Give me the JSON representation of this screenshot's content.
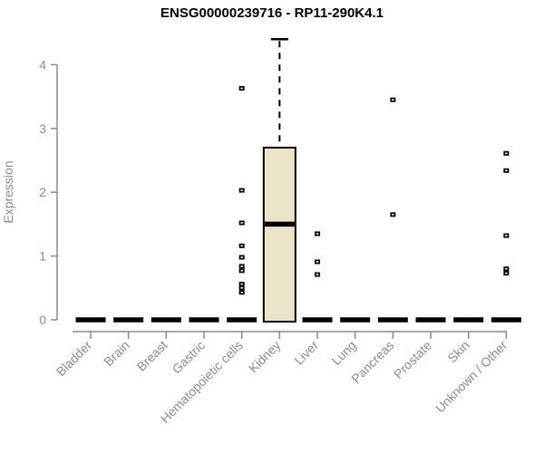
{
  "chart": {
    "title": "ENSG00000239716 - RP11-290K4.1",
    "ylabel": "Expression"
  },
  "chart_data": {
    "type": "box",
    "title": "ENSG00000239716 - RP11-290K4.1",
    "xlabel": "",
    "ylabel": "Expression",
    "ylim": [
      0,
      4.4
    ],
    "yticks": [
      0,
      1,
      2,
      3,
      4
    ],
    "grid": false,
    "legend": "none",
    "categories": [
      "Bladder",
      "Brain",
      "Breast",
      "Gastric",
      "Hematopoietic cells",
      "Kidney",
      "Liver",
      "Lung",
      "Pancreas",
      "Prostate",
      "Skin",
      "Unknown / Other"
    ],
    "boxes": [
      {
        "category": "Bladder",
        "whisker_low": 0,
        "q1": 0,
        "median": 0,
        "q3": 0,
        "whisker_high": 0,
        "outliers": []
      },
      {
        "category": "Brain",
        "whisker_low": 0,
        "q1": 0,
        "median": 0,
        "q3": 0,
        "whisker_high": 0,
        "outliers": []
      },
      {
        "category": "Breast",
        "whisker_low": 0,
        "q1": 0,
        "median": 0,
        "q3": 0,
        "whisker_high": 0,
        "outliers": []
      },
      {
        "category": "Gastric",
        "whisker_low": 0,
        "q1": 0,
        "median": 0,
        "q3": 0,
        "whisker_high": 0,
        "outliers": []
      },
      {
        "category": "Hematopoietic cells",
        "whisker_low": 0,
        "q1": 0,
        "median": 0,
        "q3": 0,
        "whisker_high": 0,
        "outliers": [
          3.63,
          2.03,
          1.52,
          1.16,
          0.98,
          0.84,
          0.77,
          0.56,
          0.5,
          0.43
        ]
      },
      {
        "category": "Kidney",
        "whisker_low": 0,
        "q1": 0,
        "median": 1.5,
        "q3": 2.7,
        "whisker_high": 4.4,
        "outliers": []
      },
      {
        "category": "Liver",
        "whisker_low": 0,
        "q1": 0,
        "median": 0,
        "q3": 0,
        "whisker_high": 0,
        "outliers": [
          1.35,
          0.91,
          0.71
        ]
      },
      {
        "category": "Lung",
        "whisker_low": 0,
        "q1": 0,
        "median": 0,
        "q3": 0,
        "whisker_high": 0,
        "outliers": []
      },
      {
        "category": "Pancreas",
        "whisker_low": 0,
        "q1": 0,
        "median": 0,
        "q3": 0,
        "whisker_high": 0,
        "outliers": [
          3.45,
          1.65
        ]
      },
      {
        "category": "Prostate",
        "whisker_low": 0,
        "q1": 0,
        "median": 0,
        "q3": 0,
        "whisker_high": 0,
        "outliers": []
      },
      {
        "category": "Skin",
        "whisker_low": 0,
        "q1": 0,
        "median": 0,
        "q3": 0,
        "whisker_high": 0,
        "outliers": []
      },
      {
        "category": "Unknown / Other",
        "whisker_low": 0,
        "q1": 0,
        "median": 0,
        "q3": 0,
        "whisker_high": 0,
        "outliers": [
          2.61,
          2.34,
          1.32,
          0.8,
          0.73
        ]
      }
    ],
    "colors": {
      "box_fill": "#EAE4C8",
      "box_border": "#000000",
      "median": "#000000",
      "outlier": "#000000",
      "axis": "#8B8B8B",
      "tick_label": "#8B8B8B",
      "title": "#000000",
      "background": "#FFFFFF"
    }
  }
}
